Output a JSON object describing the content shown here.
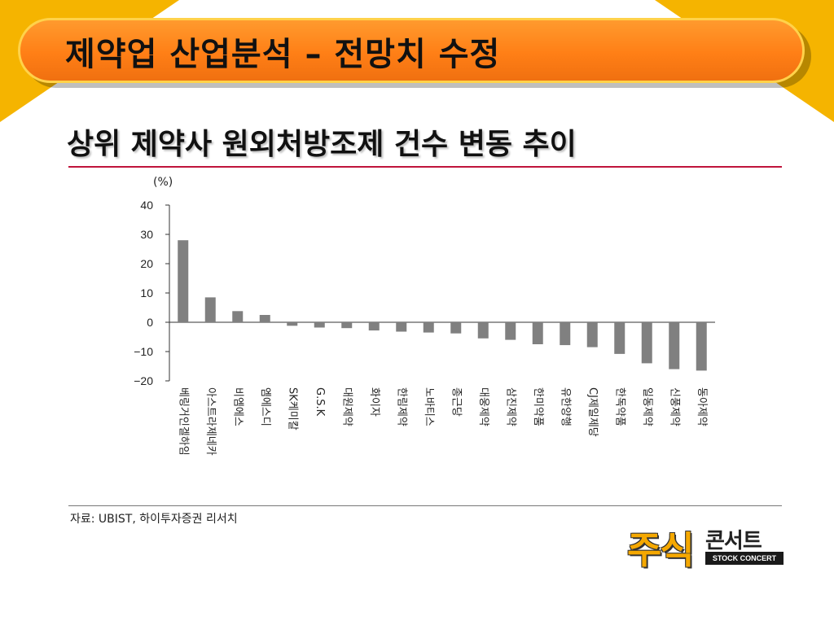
{
  "slide": {
    "title": "제약업 산업분석 – 전망치 수정",
    "subtitle": "상위 제약사 원외처방조제 건수 변동 추이",
    "source": "자료: UBIST, 하이투자증권 리서치"
  },
  "logo": {
    "main": "주식",
    "sub": "콘서트",
    "tag": "STOCK CONCERT"
  },
  "colors": {
    "accent": "#ff8a1c",
    "corner": "#f5b400",
    "rule": "#c0143c",
    "bar": "#808080"
  },
  "chart_data": {
    "type": "bar",
    "unit_label": "(%)",
    "categories": [
      "베링거인겔하임",
      "아스트라제네카",
      "비엠에스",
      "엠에스디",
      "SK케미칼",
      "G.S.K",
      "대원제약",
      "화이자",
      "한림제약",
      "노바티스",
      "종근당",
      "대웅제약",
      "삼진제약",
      "한미약품",
      "유한양행",
      "CJ제일제당",
      "한독약품",
      "일동제약",
      "신풍제약",
      "동아제약"
    ],
    "values": [
      28,
      8.5,
      3.8,
      2.5,
      -1.2,
      -1.8,
      -2,
      -2.8,
      -3.2,
      -3.5,
      -3.8,
      -5.5,
      -6,
      -7.5,
      -7.8,
      -8.5,
      -10.8,
      -14,
      -16,
      -16.5
    ],
    "yticks": [
      40,
      30,
      20,
      10,
      0,
      -10,
      -20
    ],
    "ylim": [
      -20,
      40
    ]
  }
}
